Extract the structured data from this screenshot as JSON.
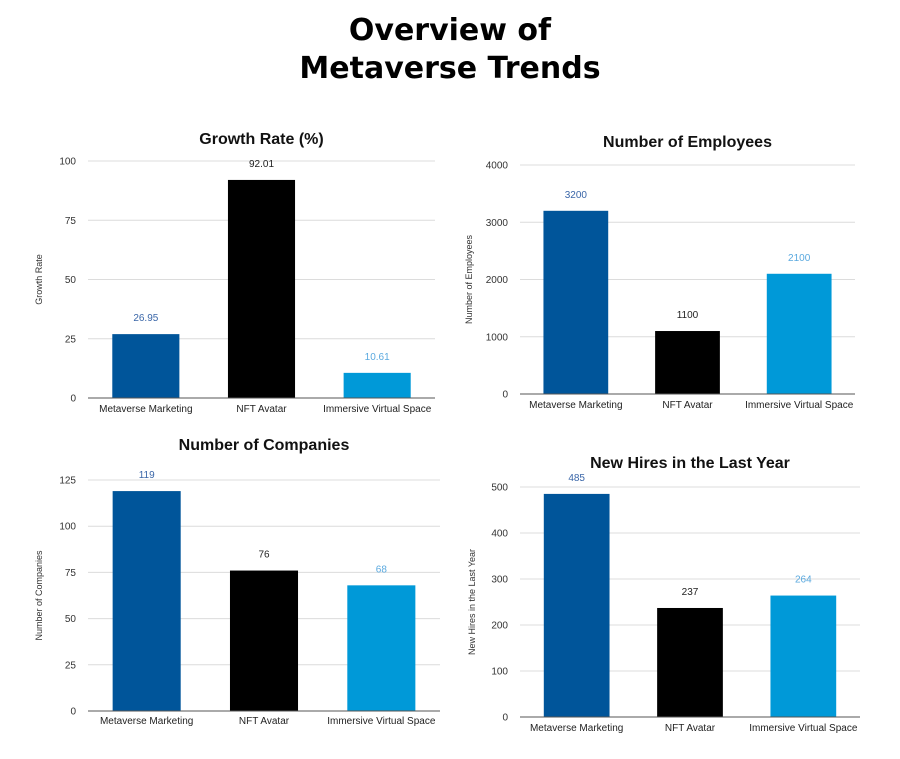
{
  "page": {
    "title_line1": "Overview of",
    "title_line2": "Metaverse Trends"
  },
  "colors": {
    "Metaverse Marketing": "#00559a",
    "NFT Avatar": "#000000",
    "Immersive Virtual Space": "#0099d8",
    "label_Metaverse Marketing": "#3a66a8",
    "label_NFT Avatar": "#222222",
    "label_Immersive Virtual Space": "#5aa9df"
  },
  "chart_data": [
    {
      "type": "bar",
      "title": "Growth Rate (%)",
      "ylabel": "Growth Rate",
      "categories": [
        "Metaverse Marketing",
        "NFT Avatar",
        "Immersive Virtual Space"
      ],
      "values": [
        26.95,
        92.01,
        10.61
      ],
      "value_labels": [
        "26.95",
        "92.01",
        "10.61"
      ],
      "yticks": [
        "0",
        "25",
        "50",
        "75",
        "100"
      ],
      "ylim": [
        0,
        100
      ],
      "grid": true
    },
    {
      "type": "bar",
      "title": "Number of Employees",
      "ylabel": "Number of Employees",
      "categories": [
        "Metaverse Marketing",
        "NFT Avatar",
        "Immersive Virtual Space"
      ],
      "values": [
        3200,
        1100,
        2100
      ],
      "value_labels": [
        "3200",
        "1100",
        "2100"
      ],
      "yticks": [
        "0",
        "1000",
        "2000",
        "3000",
        "4000"
      ],
      "ylim": [
        0,
        4000
      ],
      "grid": true
    },
    {
      "type": "bar",
      "title": "Number of Companies",
      "ylabel": "Number of Companies",
      "categories": [
        "Metaverse Marketing",
        "NFT Avatar",
        "Immersive Virtual Space"
      ],
      "values": [
        119,
        76,
        68
      ],
      "value_labels": [
        "119",
        "76",
        "68"
      ],
      "yticks": [
        "0",
        "25",
        "50",
        "75",
        "100",
        "125"
      ],
      "ylim": [
        0,
        125
      ],
      "grid": true
    },
    {
      "type": "bar",
      "title": "New Hires in the Last Year",
      "ylabel": "New Hires in the Last Year",
      "categories": [
        "Metaverse Marketing",
        "NFT Avatar",
        "Immersive Virtual Space"
      ],
      "values": [
        485,
        237,
        264
      ],
      "value_labels": [
        "485",
        "237",
        "264"
      ],
      "yticks": [
        "0",
        "100",
        "200",
        "300",
        "400",
        "500"
      ],
      "ylim": [
        0,
        500
      ],
      "grid": true
    }
  ]
}
